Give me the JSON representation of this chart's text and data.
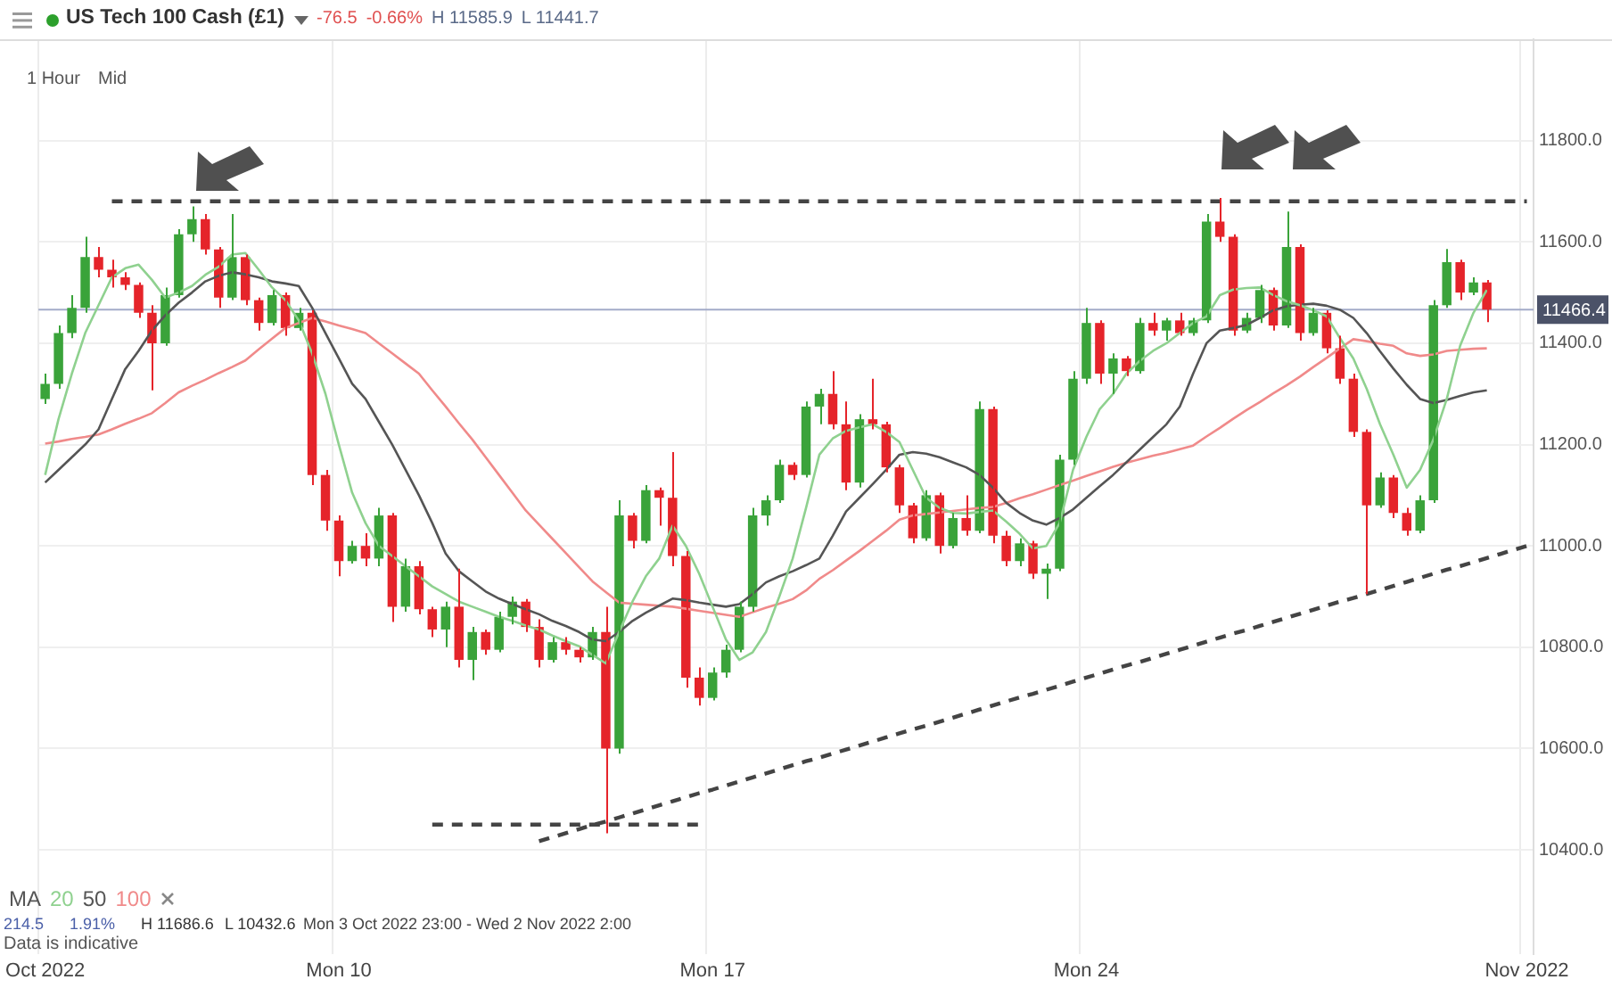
{
  "chart_data": {
    "type": "candlestick",
    "title": "US Tech 100 Cash (£1)",
    "legend_title": "MA",
    "legend": "bottom left",
    "grid": true,
    "marker": "none",
    "categories": [
      "Oct 2022",
      null,
      null,
      null,
      null,
      null,
      null,
      null,
      null,
      null,
      null,
      null,
      null,
      null,
      null,
      null,
      null,
      null,
      null,
      null,
      null,
      null,
      "Mon 10",
      null,
      null,
      null,
      null,
      null,
      null,
      null,
      null,
      null,
      null,
      null,
      null,
      null,
      null,
      null,
      null,
      null,
      null,
      null,
      null,
      null,
      null,
      null,
      null,
      null,
      null,
      null,
      "Mon 17",
      null,
      null,
      null,
      null,
      null,
      null,
      null,
      null,
      null,
      null,
      null,
      null,
      null,
      null,
      null,
      null,
      null,
      null,
      null,
      null,
      null,
      null,
      null,
      null,
      null,
      null,
      null,
      "Mon 24",
      null,
      null,
      null,
      null,
      null,
      null,
      null,
      null,
      null,
      null,
      null,
      null,
      null,
      null,
      null,
      null,
      null,
      null,
      null,
      null,
      null,
      null,
      null,
      null,
      null,
      null,
      null,
      null,
      null,
      null,
      null,
      null,
      "Nov 2022"
    ],
    "ohlc": [
      [
        11290,
        11340,
        11280,
        11320
      ],
      [
        11320,
        11435,
        11310,
        11420
      ],
      [
        11420,
        11495,
        11410,
        11470
      ],
      [
        11470,
        11610,
        11460,
        11570
      ],
      [
        11570,
        11590,
        11530,
        11545
      ],
      [
        11545,
        11565,
        11510,
        11530
      ],
      [
        11530,
        11540,
        11505,
        11515
      ],
      [
        11515,
        11520,
        11450,
        11460
      ],
      [
        11460,
        11475,
        11307,
        11400
      ],
      [
        11400,
        11510,
        11395,
        11495
      ],
      [
        11495,
        11625,
        11490,
        11615
      ],
      [
        11615,
        11670,
        11600,
        11645
      ],
      [
        11645,
        11655,
        11575,
        11585
      ],
      [
        11585,
        11590,
        11470,
        11490
      ],
      [
        11490,
        11655,
        11485,
        11570
      ],
      [
        11570,
        11575,
        11475,
        11485
      ],
      [
        11485,
        11490,
        11425,
        11440
      ],
      [
        11440,
        11505,
        11435,
        11495
      ],
      [
        11495,
        11500,
        11415,
        11430
      ],
      [
        11430,
        11470,
        11425,
        11460
      ],
      [
        11460,
        11465,
        11120,
        11140
      ],
      [
        11140,
        11150,
        11030,
        11050
      ],
      [
        11050,
        11060,
        10940,
        10970
      ],
      [
        10970,
        11010,
        10965,
        11000
      ],
      [
        11000,
        11025,
        10960,
        10975
      ],
      [
        10975,
        11075,
        10960,
        11060
      ],
      [
        11060,
        11065,
        10850,
        10880
      ],
      [
        10880,
        10975,
        10870,
        10960
      ],
      [
        10960,
        10970,
        10865,
        10875
      ],
      [
        10875,
        10880,
        10820,
        10835
      ],
      [
        10835,
        10890,
        10800,
        10880
      ],
      [
        10880,
        10955,
        10760,
        10775
      ],
      [
        10775,
        10840,
        10735,
        10830
      ],
      [
        10830,
        10835,
        10785,
        10795
      ],
      [
        10795,
        10870,
        10790,
        10860
      ],
      [
        10860,
        10900,
        10845,
        10890
      ],
      [
        10890,
        10895,
        10830,
        10840
      ],
      [
        10840,
        10855,
        10760,
        10775
      ],
      [
        10775,
        10820,
        10770,
        10810
      ],
      [
        10810,
        10820,
        10785,
        10795
      ],
      [
        10795,
        10800,
        10770,
        10780
      ],
      [
        10780,
        10840,
        10775,
        10830
      ],
      [
        10830,
        10880,
        10432.6,
        10600
      ],
      [
        10600,
        11090,
        10590,
        11060
      ],
      [
        11060,
        11065,
        10995,
        11010
      ],
      [
        11010,
        11120,
        11005,
        11110
      ],
      [
        11110,
        11115,
        11040,
        11095
      ],
      [
        11095,
        11185,
        10960,
        10980
      ],
      [
        10980,
        10990,
        10720,
        10740
      ],
      [
        10740,
        10760,
        10685,
        10700
      ],
      [
        10700,
        10760,
        10695,
        10750
      ],
      [
        10750,
        10805,
        10740,
        10795
      ],
      [
        10795,
        10890,
        10790,
        10880
      ],
      [
        10880,
        11075,
        10870,
        11060
      ],
      [
        11060,
        11100,
        11040,
        11090
      ],
      [
        11090,
        11170,
        11085,
        11160
      ],
      [
        11160,
        11165,
        11130,
        11140
      ],
      [
        11140,
        11285,
        11135,
        11275
      ],
      [
        11275,
        11310,
        11240,
        11300
      ],
      [
        11300,
        11345,
        11230,
        11240
      ],
      [
        11240,
        11285,
        11110,
        11125
      ],
      [
        11125,
        11260,
        11115,
        11250
      ],
      [
        11250,
        11330,
        11230,
        11240
      ],
      [
        11240,
        11245,
        11145,
        11155
      ],
      [
        11155,
        11160,
        11065,
        11080
      ],
      [
        11080,
        11085,
        11005,
        11015
      ],
      [
        11015,
        11110,
        11010,
        11100
      ],
      [
        11100,
        11105,
        10985,
        11000
      ],
      [
        11000,
        11065,
        10995,
        11055
      ],
      [
        11055,
        11100,
        11020,
        11030
      ],
      [
        11030,
        11285,
        11025,
        11270
      ],
      [
        11270,
        11275,
        11005,
        11020
      ],
      [
        11020,
        11030,
        10960,
        10970
      ],
      [
        10970,
        11015,
        10960,
        11005
      ],
      [
        11005,
        11010,
        10935,
        10945
      ],
      [
        10945,
        10965,
        10895,
        10955
      ],
      [
        10955,
        11180,
        10950,
        11170
      ],
      [
        11170,
        11345,
        11160,
        11330
      ],
      [
        11330,
        11470,
        11320,
        11440
      ],
      [
        11440,
        11445,
        11320,
        11340
      ],
      [
        11340,
        11380,
        11300,
        11370
      ],
      [
        11370,
        11375,
        11335,
        11345
      ],
      [
        11345,
        11450,
        11340,
        11440
      ],
      [
        11440,
        11460,
        11415,
        11425
      ],
      [
        11425,
        11450,
        11405,
        11445
      ],
      [
        11445,
        11460,
        11415,
        11420
      ],
      [
        11420,
        11450,
        11415,
        11445
      ],
      [
        11445,
        11655,
        11440,
        11640
      ],
      [
        11640,
        11686.6,
        11600,
        11610
      ],
      [
        11610,
        11615,
        11415,
        11425
      ],
      [
        11425,
        11460,
        11420,
        11450
      ],
      [
        11450,
        11515,
        11440,
        11505
      ],
      [
        11505,
        11510,
        11425,
        11435
      ],
      [
        11435,
        11660,
        11430,
        11590
      ],
      [
        11590,
        11595,
        11405,
        11420
      ],
      [
        11420,
        11470,
        11415,
        11460
      ],
      [
        11460,
        11465,
        11380,
        11390
      ],
      [
        11390,
        11415,
        11320,
        11330
      ],
      [
        11330,
        11340,
        11215,
        11225
      ],
      [
        11225,
        11230,
        10905,
        11080
      ],
      [
        11080,
        11145,
        11075,
        11135
      ],
      [
        11135,
        11140,
        11055,
        11065
      ],
      [
        11065,
        11075,
        11020,
        11030
      ],
      [
        11030,
        11100,
        11025,
        11090
      ],
      [
        11090,
        11485,
        11085,
        11475
      ],
      [
        11475,
        11585.9,
        11470,
        11560
      ],
      [
        11560,
        11565,
        11485,
        11500
      ],
      [
        11500,
        11530,
        11495,
        11520
      ],
      [
        11520,
        11525,
        11441.7,
        11466.4
      ],
      null,
      null,
      null
    ],
    "colors": [
      "#3aa33a",
      "#3aa33a",
      "#3aa33a",
      "#3aa33a",
      "#e5242a",
      "#e5242a",
      "#e5242a",
      "#e5242a",
      "#e5242a",
      "#3aa33a",
      "#3aa33a",
      "#3aa33a",
      "#e5242a",
      "#e5242a",
      "#3aa33a",
      "#e5242a",
      "#e5242a",
      "#3aa33a",
      "#e5242a",
      "#3aa33a",
      "#e5242a",
      "#e5242a",
      "#e5242a",
      "#3aa33a",
      "#e5242a",
      "#3aa33a",
      "#e5242a",
      "#3aa33a",
      "#e5242a",
      "#e5242a",
      "#3aa33a",
      "#e5242a",
      "#3aa33a",
      "#e5242a",
      "#3aa33a",
      "#3aa33a",
      "#e5242a",
      "#e5242a",
      "#3aa33a",
      "#e5242a",
      "#e5242a",
      "#3aa33a",
      "#e5242a",
      "#3aa33a",
      "#e5242a",
      "#3aa33a",
      "#e5242a",
      "#e5242a",
      "#e5242a",
      "#e5242a",
      "#3aa33a",
      "#3aa33a",
      "#3aa33a",
      "#3aa33a",
      "#3aa33a",
      "#3aa33a",
      "#e5242a",
      "#3aa33a",
      "#3aa33a",
      "#e5242a",
      "#e5242a",
      "#3aa33a",
      "#e5242a",
      "#e5242a",
      "#e5242a",
      "#e5242a",
      "#3aa33a",
      "#e5242a",
      "#3aa33a",
      "#e5242a",
      "#3aa33a",
      "#e5242a",
      "#e5242a",
      "#3aa33a",
      "#e5242a",
      "#3aa33a",
      "#3aa33a",
      "#3aa33a",
      "#3aa33a",
      "#e5242a",
      "#3aa33a",
      "#e5242a",
      "#3aa33a",
      "#e5242a",
      "#3aa33a",
      "#e5242a",
      "#3aa33a",
      "#3aa33a",
      "#e5242a",
      "#e5242a",
      "#3aa33a",
      "#3aa33a",
      "#e5242a",
      "#3aa33a",
      "#e5242a",
      "#3aa33a",
      "#e5242a",
      "#e5242a",
      "#e5242a",
      "#e5242a",
      "#3aa33a",
      "#e5242a",
      "#e5242a",
      "#3aa33a",
      "#3aa33a",
      "#3aa33a",
      "#e5242a",
      "#3aa33a",
      "#e5242a",
      null,
      null,
      null
    ],
    "series": [
      {
        "type": "line",
        "name": "20",
        "color": "#8fd18f",
        "values": [
          11140,
          11250,
          11340,
          11420,
          11475,
          11530,
          11548,
          11555,
          11525,
          11490,
          11500,
          11513,
          11535,
          11551,
          11575,
          11578,
          11545,
          11510,
          11485,
          11445,
          11380,
          11300,
          11200,
          11105,
          11045,
          11000,
          10980,
          10960,
          10940,
          10920,
          10905,
          10890,
          10880,
          10870,
          10860,
          10852,
          10843,
          10835,
          10823,
          10812,
          10802,
          10785,
          10768,
          10830,
          10890,
          10940,
          10975,
          11040,
          11000,
          10945,
          10880,
          10815,
          10775,
          10790,
          10830,
          10900,
          10975,
          11075,
          11180,
          11212,
          11227,
          11234,
          11240,
          11225,
          11205,
          11150,
          11095,
          11075,
          11065,
          11064,
          11067,
          11070,
          11048,
          11024,
          10995,
          11000,
          11045,
          11150,
          11215,
          11270,
          11300,
          11340,
          11365,
          11385,
          11400,
          11420,
          11440,
          11453,
          11495,
          11506,
          11509,
          11510,
          11495,
          11483,
          11475,
          11465,
          11453,
          11410,
          11370,
          11310,
          11240,
          11180,
          11115,
          11150,
          11210,
          11290,
          11395,
          11460,
          11505,
          null,
          null,
          null
        ]
      },
      {
        "type": "line",
        "name": "50",
        "color": "#555555",
        "values": [
          11125,
          11150,
          11175,
          11200,
          11230,
          11290,
          11349,
          11385,
          11425,
          11455,
          11480,
          11500,
          11522,
          11533,
          11540,
          11536,
          11530,
          11522,
          11518,
          11513,
          11470,
          11420,
          11370,
          11320,
          11290,
          11245,
          11200,
          11150,
          11100,
          11045,
          10985,
          10950,
          10930,
          10910,
          10896,
          10885,
          10875,
          10865,
          10852,
          10842,
          10830,
          10815,
          10812,
          10830,
          10852,
          10868,
          10882,
          10896,
          10893,
          10888,
          10884,
          10880,
          10885,
          10905,
          10928,
          10940,
          10950,
          10962,
          10975,
          11020,
          11068,
          11095,
          11122,
          11150,
          11180,
          11185,
          11182,
          11175,
          11165,
          11155,
          11140,
          11115,
          11085,
          11065,
          11050,
          11042,
          11055,
          11072,
          11095,
          11118,
          11140,
          11165,
          11190,
          11215,
          11240,
          11275,
          11340,
          11400,
          11425,
          11430,
          11436,
          11450,
          11465,
          11473,
          11476,
          11478,
          11474,
          11466,
          11450,
          11420,
          11384,
          11350,
          11318,
          11290,
          11282,
          11288,
          11296,
          11303,
          11307,
          null,
          null,
          null
        ]
      },
      {
        "type": "line",
        "name": "100",
        "color": "#f08a8a",
        "values": [
          11202,
          11206,
          11211,
          11215,
          11220,
          11230,
          11241,
          11251,
          11262,
          11282,
          11303,
          11316,
          11328,
          11341,
          11353,
          11366,
          11388,
          11409,
          11430,
          11440,
          11450,
          11443,
          11435,
          11428,
          11420,
          11400,
          11380,
          11360,
          11340,
          11307,
          11275,
          11242,
          11210,
          11175,
          11140,
          11105,
          11070,
          11042,
          11014,
          10986,
          10958,
          10930,
          10909,
          10888,
          10886,
          10884,
          10882,
          10880,
          10876,
          10872,
          10868,
          10864,
          10860,
          10869,
          10878,
          10886,
          10895,
          10912,
          10935,
          10952,
          10971,
          10990,
          11010,
          11030,
          11052,
          11060,
          11063,
          11066,
          11069,
          11072,
          11075,
          11077,
          11085,
          11094,
          11102,
          11111,
          11120,
          11129,
          11138,
          11147,
          11156,
          11164,
          11171,
          11178,
          11184,
          11191,
          11198,
          11216,
          11233,
          11251,
          11268,
          11284,
          11301,
          11317,
          11334,
          11353,
          11371,
          11390,
          11408,
          11404,
          11399,
          11395,
          11380,
          11375,
          11378,
          11385,
          11387,
          11389,
          11390,
          null,
          null,
          null
        ]
      },
      {
        "type": "line",
        "color": "#444444",
        "line_style": "dashed",
        "values": [
          null,
          null,
          null,
          null,
          null,
          11680,
          11680,
          11680,
          11680,
          11680,
          11680,
          11680,
          11680,
          11680,
          11680,
          11680,
          11680,
          11680,
          11680,
          11680,
          11680,
          11680,
          11680,
          11680,
          11680,
          11680,
          11680,
          11680,
          11680,
          11680,
          11680,
          11680,
          11680,
          11680,
          11680,
          11680,
          11680,
          11680,
          11680,
          11680,
          11680,
          11680,
          11680,
          11680,
          11680,
          11680,
          11680,
          11680,
          11680,
          11680,
          11680,
          11680,
          11680,
          11680,
          11680,
          11680,
          11680,
          11680,
          11680,
          11680,
          11680,
          11680,
          11680,
          11680,
          11680,
          11680,
          11680,
          11680,
          11680,
          11680,
          11680,
          11680,
          11680,
          11680,
          11680,
          11680,
          11680,
          11680,
          11680,
          11680,
          11680,
          11680,
          11680,
          11680,
          11680,
          11680,
          11680,
          11680,
          11680,
          11680,
          11680,
          11680,
          11680,
          11680,
          11680,
          11680,
          11680,
          11680,
          11680,
          11680,
          11680,
          11680,
          11680,
          11680,
          11680,
          11680,
          11680,
          11680,
          11680,
          11680,
          11680,
          11680
        ]
      },
      {
        "type": "line",
        "color": "#444444",
        "line_style": "dashed",
        "values": [
          null,
          null,
          null,
          null,
          null,
          null,
          null,
          null,
          null,
          null,
          null,
          null,
          null,
          null,
          null,
          null,
          null,
          null,
          null,
          null,
          null,
          null,
          null,
          null,
          null,
          null,
          null,
          null,
          null,
          10450,
          10450,
          10450,
          10450,
          10450,
          10450,
          10450,
          10450,
          10450,
          10450,
          10450,
          10450,
          10450,
          10450,
          10450,
          10450,
          10450,
          10450,
          10450,
          10450,
          10450,
          null,
          null,
          null,
          null,
          null,
          null,
          null,
          null,
          null,
          null,
          null,
          null,
          null,
          null,
          null,
          null,
          null,
          null,
          null,
          null,
          null,
          null,
          null,
          null,
          null,
          null,
          null,
          null,
          null,
          null,
          null,
          null,
          null,
          null,
          null,
          null,
          null,
          null,
          null,
          null,
          null,
          null,
          null,
          null,
          null,
          null,
          null,
          null,
          null,
          null,
          null,
          null,
          null,
          null,
          null,
          null,
          null,
          null,
          null,
          null,
          null,
          null
        ]
      },
      {
        "type": "line",
        "color": "#444444",
        "line_style": "dashed",
        "values": [
          null,
          null,
          null,
          null,
          null,
          null,
          null,
          null,
          null,
          null,
          null,
          null,
          null,
          null,
          null,
          null,
          null,
          null,
          null,
          null,
          null,
          null,
          null,
          null,
          null,
          null,
          null,
          null,
          null,
          null,
          null,
          null,
          null,
          null,
          null,
          null,
          null,
          10417,
          10425,
          10433,
          10441,
          10449,
          10456,
          10464,
          10472,
          10480,
          10488,
          10496,
          10504,
          10512,
          10519,
          10527,
          10535,
          10543,
          10551,
          10559,
          10567,
          10575,
          10582,
          10590,
          10598,
          10606,
          10614,
          10622,
          10630,
          10638,
          10645,
          10653,
          10661,
          10669,
          10677,
          10685,
          10693,
          10701,
          10708,
          10716,
          10724,
          10732,
          10740,
          10748,
          10756,
          10764,
          10771,
          10779,
          10787,
          10795,
          10803,
          10811,
          10819,
          10827,
          10834,
          10842,
          10850,
          10858,
          10866,
          10874,
          10882,
          10890,
          10897,
          10905,
          10913,
          10921,
          10929,
          10937,
          10945,
          10953,
          10960,
          10968,
          10976,
          10984,
          10992,
          11000
        ]
      }
    ],
    "ref_lines": [
      {
        "axis": "y",
        "value": 11466.4,
        "label": "11466.4",
        "color": "#a3abc9"
      }
    ],
    "ylim": [
      10195,
      12000
    ],
    "yticks": [
      {
        "value": 10400,
        "label": "10400.0"
      },
      {
        "value": 10600,
        "label": "10600.0"
      },
      {
        "value": 10800,
        "label": "10800.0"
      },
      {
        "value": 11000,
        "label": "11000.0"
      },
      {
        "value": 11200,
        "label": "11200.0"
      },
      {
        "value": 11400,
        "label": "11400.0"
      },
      {
        "value": 11600,
        "label": "11600.0"
      },
      {
        "value": 11800,
        "label": "11800.0"
      }
    ],
    "annotations": [
      "-76.5",
      "-0.66%",
      "H 11585.9",
      "L 11441.7",
      "1 Hour",
      "Mid",
      "214.5",
      "1.91%",
      "H 11686.6",
      "L 10432.6",
      "Mon 3 Oct 2022 23:00 - Wed 2 Nov 2022 2:00",
      "Data is indicative"
    ]
  }
}
